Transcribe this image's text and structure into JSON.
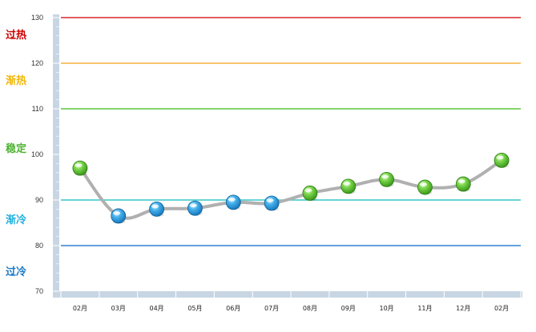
{
  "chart_data": {
    "type": "line",
    "categories": [
      "02月",
      "03月",
      "04月",
      "05月",
      "06月",
      "07月",
      "08月",
      "09月",
      "10月",
      "11月",
      "12月",
      "02月"
    ],
    "values": [
      97,
      86.5,
      88,
      88.2,
      89.5,
      89.3,
      91.5,
      93,
      94.5,
      92.8,
      93.5,
      98.7
    ],
    "ylim": [
      70,
      130
    ],
    "yticks": [
      70,
      80,
      90,
      100,
      110,
      120,
      130
    ],
    "point_zones": [
      "stable",
      "cooling",
      "cooling",
      "cooling",
      "cooling",
      "cooling",
      "stable",
      "stable",
      "stable",
      "stable",
      "stable",
      "stable"
    ],
    "thresholds": [
      {
        "value": 130,
        "color": "#d9262b"
      },
      {
        "value": 120,
        "color": "#f5b041"
      },
      {
        "value": 110,
        "color": "#5cc53a"
      },
      {
        "value": 90,
        "color": "#36c6c8"
      },
      {
        "value": 80,
        "color": "#2f84d2"
      }
    ],
    "zones": [
      {
        "label": "过热",
        "color": "#cc0000",
        "value": 126
      },
      {
        "label": "渐热",
        "color": "#f2b705",
        "value": 116
      },
      {
        "label": "稳定",
        "color": "#4cb32f",
        "value": 101
      },
      {
        "label": "渐冷",
        "color": "#1fb0de",
        "value": 85.5
      },
      {
        "label": "过冷",
        "color": "#1779c7",
        "value": 74
      }
    ],
    "colors": {
      "stable": "#4caf28",
      "cooling": "#1b8fd6",
      "line": "#b0b0b0",
      "axis_bar": "#c8d6e4"
    }
  }
}
